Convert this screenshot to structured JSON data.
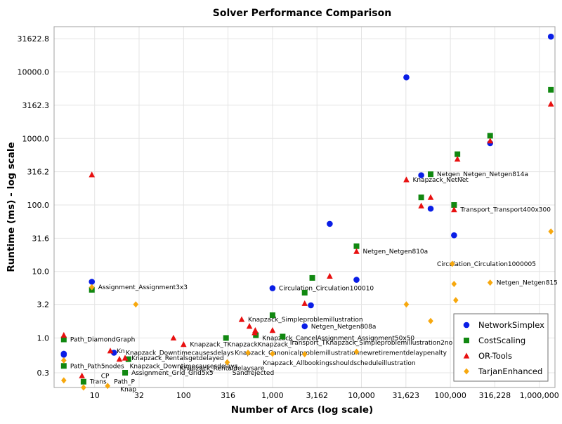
{
  "chart_data": {
    "type": "scatter",
    "title": "Solver Performance Comparison",
    "xlabel": "Number of Arcs (log scale)",
    "ylabel": "Runtime (ms) - log scale",
    "x_scale": "log",
    "y_scale": "log",
    "xlim": [
      3.5,
      1500000
    ],
    "ylim": [
      0.18,
      48000
    ],
    "grid": true,
    "legend_position": "bottom-right",
    "x_ticks": [
      {
        "value": 10,
        "label": "10"
      },
      {
        "value": 31.6,
        "label": "32"
      },
      {
        "value": 100,
        "label": "100"
      },
      {
        "value": 316,
        "label": "316"
      },
      {
        "value": 1000,
        "label": "1,000"
      },
      {
        "value": 3162,
        "label": "3,162"
      },
      {
        "value": 10000,
        "label": "10,000"
      },
      {
        "value": 31623,
        "label": "31,623"
      },
      {
        "value": 100000,
        "label": "100,000"
      },
      {
        "value": 316228,
        "label": "316,228"
      },
      {
        "value": 1000000,
        "label": "1,000,000"
      }
    ],
    "y_ticks": [
      {
        "value": 0.3,
        "label": "0.3"
      },
      {
        "value": 1.0,
        "label": "1.0"
      },
      {
        "value": 3.2,
        "label": "3.2"
      },
      {
        "value": 10.0,
        "label": "10.0"
      },
      {
        "value": 31.6,
        "label": "31.6"
      },
      {
        "value": 100.0,
        "label": "100.0"
      },
      {
        "value": 316.2,
        "label": "316.2"
      },
      {
        "value": 1000.0,
        "label": "1000.0"
      },
      {
        "value": 3162.3,
        "label": "3162.3"
      },
      {
        "value": 10000.0,
        "label": "10000.0"
      },
      {
        "value": 31622.8,
        "label": "31622.8"
      }
    ],
    "series": [
      {
        "name": "NetworkSimplex",
        "marker": "circle",
        "color": "#0a1ee6",
        "points": [
          [
            4.5,
            0.58
          ],
          [
            4.5,
            0.56
          ],
          [
            9.3,
            7.0
          ],
          [
            16.5,
            0.6
          ],
          [
            1000,
            5.6
          ],
          [
            2300,
            1.5
          ],
          [
            2700,
            3.1
          ],
          [
            4400,
            52
          ],
          [
            8800,
            7.5
          ],
          [
            32000,
            8300
          ],
          [
            47000,
            280
          ],
          [
            60000,
            88
          ],
          [
            110000,
            35
          ],
          [
            280000,
            850
          ],
          [
            1350000,
            34000
          ]
        ]
      },
      {
        "name": "CostScaling",
        "marker": "square",
        "color": "#118811",
        "points": [
          [
            4.5,
            0.95
          ],
          [
            4.5,
            0.38
          ],
          [
            7.5,
            0.22
          ],
          [
            9.3,
            5.3
          ],
          [
            22,
            0.3
          ],
          [
            24,
            0.48
          ],
          [
            300,
            1.0
          ],
          [
            650,
            1.1
          ],
          [
            1000,
            2.2
          ],
          [
            1300,
            1.05
          ],
          [
            2300,
            4.8
          ],
          [
            2800,
            8.0
          ],
          [
            8800,
            24
          ],
          [
            47000,
            130
          ],
          [
            60000,
            290
          ],
          [
            110000,
            100
          ],
          [
            120000,
            580
          ],
          [
            280000,
            1100
          ],
          [
            1350000,
            5400
          ]
        ]
      },
      {
        "name": "OR-Tools",
        "marker": "triangle",
        "color": "#e81010",
        "points": [
          [
            4.5,
            1.1
          ],
          [
            7.2,
            0.27
          ],
          [
            9.3,
            285
          ],
          [
            15,
            0.64
          ],
          [
            19,
            0.48
          ],
          [
            22,
            0.5
          ],
          [
            77,
            1.0
          ],
          [
            100,
            0.8
          ],
          [
            450,
            1.9
          ],
          [
            550,
            1.5
          ],
          [
            630,
            1.2
          ],
          [
            640,
            1.3
          ],
          [
            1000,
            1.3
          ],
          [
            2300,
            3.3
          ],
          [
            4400,
            8.5
          ],
          [
            8800,
            20
          ],
          [
            32000,
            240
          ],
          [
            47000,
            97
          ],
          [
            60000,
            130
          ],
          [
            110000,
            85
          ],
          [
            120000,
            490
          ],
          [
            280000,
            920
          ],
          [
            1350000,
            3300
          ]
        ]
      },
      {
        "name": "TarjanEnhanced",
        "marker": "diamond",
        "color": "#f7a80e",
        "points": [
          [
            4.5,
            0.23
          ],
          [
            4.5,
            0.46
          ],
          [
            7.5,
            0.18
          ],
          [
            9.3,
            5.8
          ],
          [
            14,
            0.19
          ],
          [
            29,
            3.2
          ],
          [
            310,
            0.43
          ],
          [
            530,
            0.6
          ],
          [
            1000,
            0.58
          ],
          [
            2300,
            0.57
          ],
          [
            8800,
            0.62
          ],
          [
            32000,
            3.2
          ],
          [
            60000,
            1.8
          ],
          [
            105000,
            13
          ],
          [
            110000,
            6.5
          ],
          [
            115000,
            3.7
          ],
          [
            280000,
            6.8
          ],
          [
            1350000,
            40
          ]
        ]
      }
    ],
    "annotations": [
      {
        "x": 9.3,
        "y": 5.8,
        "text": "Assignment_Assignment3x3"
      },
      {
        "x": 4.5,
        "y": 0.95,
        "text": "Path_DiamondGraph"
      },
      {
        "x": 4.5,
        "y": 0.38,
        "text": "Path_Path5nodes"
      },
      {
        "x": 7.5,
        "y": 0.22,
        "text": "Trans"
      },
      {
        "x": 10,
        "y": 0.27,
        "text": "CP"
      },
      {
        "x": 15,
        "y": 0.64,
        "text": "Kn"
      },
      {
        "x": 14,
        "y": 0.22,
        "text": "Path_P"
      },
      {
        "x": 16.5,
        "y": 0.17,
        "text": "Knap"
      },
      {
        "x": 19,
        "y": 0.6,
        "text": "Knapzack_Downtimecausesdelays"
      },
      {
        "x": 22,
        "y": 0.5,
        "text": "Knapzack_Rentalsgetdelayed"
      },
      {
        "x": 21,
        "y": 0.38,
        "text": "Knapzack_Downtimecausesdelays"
      },
      {
        "x": 22,
        "y": 0.3,
        "text": "Assignment_Grid_Grid5x5"
      },
      {
        "x": 100,
        "y": 0.8,
        "text": "Knapzack_TKnapzackKnapzack_"
      },
      {
        "x": 77,
        "y": 0.35,
        "text": "Knapzack_Rentaldelaysare"
      },
      {
        "x": 450,
        "y": 1.9,
        "text": "Knapzack_Simpleproblemillustration"
      },
      {
        "x": 320,
        "y": 0.6,
        "text": "Knapzack_Canonicalproblemillustrationnewretirementdelaypenalty"
      },
      {
        "x": 650,
        "y": 1.0,
        "text": "Knapzack_CancelAssignment_Assignment50x50"
      },
      {
        "x": 660,
        "y": 0.42,
        "text": "Knapzack_Allbookingsshouldscheduleillustration"
      },
      {
        "x": 1300,
        "y": 0.85,
        "text": "Transport_TKnapzack_Simpleproblemillustration2no"
      },
      {
        "x": 300,
        "y": 0.3,
        "text": "Sandrejected"
      },
      {
        "x": 1000,
        "y": 5.6,
        "text": "Circulation_Circulation100010"
      },
      {
        "x": 2300,
        "y": 1.5,
        "text": "Netgen_Netgen808a"
      },
      {
        "x": 8800,
        "y": 20,
        "text": "Netgen_Netgen810a"
      },
      {
        "x": 32000,
        "y": 240,
        "text": "Knapzack_NetNet"
      },
      {
        "x": 60000,
        "y": 290,
        "text": "Netgen_Netgen_Netgen814a"
      },
      {
        "x": 110000,
        "y": 85,
        "text": "Transport_Transport400x300"
      },
      {
        "x": 60000,
        "y": 13,
        "text": "Circulation_Circulation1000005"
      },
      {
        "x": 280000,
        "y": 6.8,
        "text": "Netgen_Netgen815"
      }
    ]
  }
}
